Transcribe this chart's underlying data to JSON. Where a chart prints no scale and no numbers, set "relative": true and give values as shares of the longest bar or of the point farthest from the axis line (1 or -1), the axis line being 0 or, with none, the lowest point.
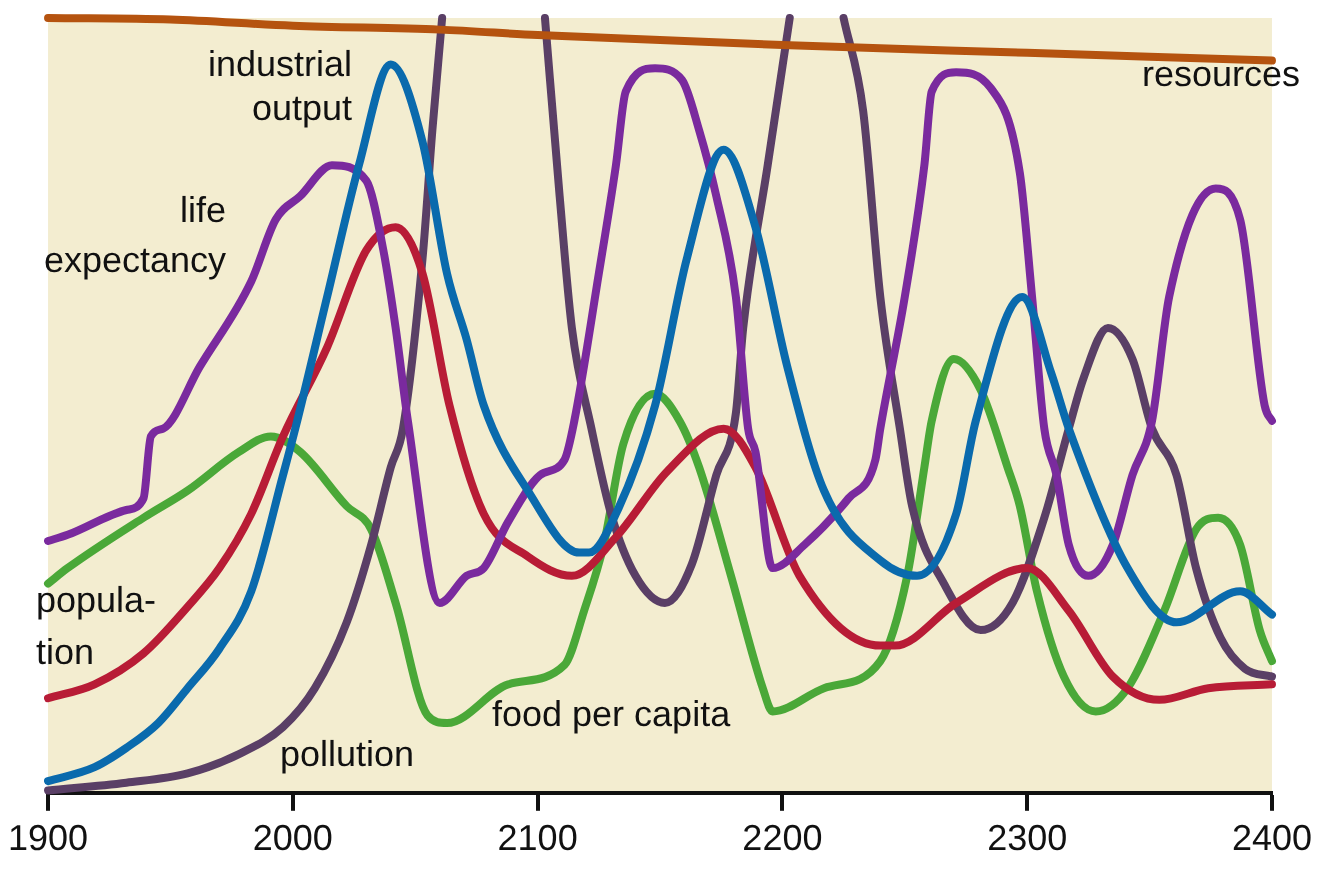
{
  "chart_data": {
    "type": "line",
    "relative": true,
    "xlim": [
      1900,
      2400
    ],
    "xticks": [
      1900,
      2000,
      2100,
      2200,
      2300,
      2400
    ],
    "grid": false,
    "legend": false,
    "marker": "none",
    "line_style": "solid",
    "series": [
      {
        "name": "resources",
        "color": "#b5530f",
        "x": [
          1900,
          1950,
          2000,
          2060,
          2100,
          2200,
          2300,
          2400
        ],
        "values": [
          1.0,
          0.998,
          0.99,
          0.985,
          0.978,
          0.965,
          0.955,
          0.945
        ]
      },
      {
        "name": "industrial output",
        "color": "#0a6aad",
        "x": [
          1900,
          1919,
          1932,
          1945,
          1957,
          1970,
          1983,
          1996,
          2001,
          2014,
          2027,
          2040,
          2053,
          2063,
          2071,
          2078,
          2096,
          2117,
          2121,
          2132,
          2148,
          2161,
          2176,
          2189,
          2202,
          2217,
          2240,
          2255,
          2271,
          2279,
          2298,
          2310,
          2317,
          2341,
          2361,
          2387,
          2400
        ],
        "values": [
          0.015,
          0.033,
          0.058,
          0.09,
          0.135,
          0.186,
          0.26,
          0.41,
          0.47,
          0.64,
          0.81,
          0.94,
          0.84,
          0.67,
          0.585,
          0.5,
          0.39,
          0.31,
          0.31,
          0.36,
          0.5,
          0.69,
          0.83,
          0.73,
          0.55,
          0.39,
          0.3,
          0.28,
          0.36,
          0.48,
          0.64,
          0.54,
          0.47,
          0.29,
          0.22,
          0.26,
          0.23
        ]
      },
      {
        "name": "life expectancy",
        "color": "#7a2a9e",
        "x": [
          1900,
          1908,
          1932,
          1939,
          1942,
          1947,
          1962,
          1983,
          1993,
          2003,
          2016,
          2030,
          2037,
          2042,
          2047,
          2060,
          2071,
          2078,
          2088,
          2101,
          2111,
          2115,
          2125,
          2132,
          2136,
          2148,
          2159,
          2166,
          2173,
          2181,
          2186,
          2189,
          2196,
          2209,
          2227,
          2238,
          2240,
          2250,
          2258,
          2261,
          2271,
          2285,
          2297,
          2302,
          2307,
          2312,
          2317,
          2325,
          2335,
          2343,
          2351,
          2358,
          2377,
          2387,
          2397,
          2400
        ],
        "values": [
          0.325,
          0.333,
          0.365,
          0.38,
          0.46,
          0.47,
          0.55,
          0.66,
          0.74,
          0.77,
          0.81,
          0.79,
          0.7,
          0.6,
          0.48,
          0.245,
          0.28,
          0.29,
          0.35,
          0.41,
          0.43,
          0.48,
          0.67,
          0.81,
          0.905,
          0.935,
          0.92,
          0.855,
          0.77,
          0.64,
          0.47,
          0.44,
          0.29,
          0.32,
          0.38,
          0.43,
          0.47,
          0.64,
          0.81,
          0.905,
          0.93,
          0.91,
          0.8,
          0.64,
          0.47,
          0.41,
          0.32,
          0.28,
          0.32,
          0.41,
          0.48,
          0.64,
          0.78,
          0.74,
          0.5,
          0.48
        ]
      },
      {
        "name": "popula- tion",
        "color": "#b81c36",
        "x": [
          1900,
          1919,
          1939,
          1957,
          1970,
          1983,
          1996,
          2014,
          2030,
          2042,
          2053,
          2064,
          2078,
          2096,
          2114,
          2132,
          2153,
          2176,
          2189,
          2207,
          2240,
          2246,
          2271,
          2300,
          2317,
          2335,
          2354,
          2374,
          2400
        ],
        "values": [
          0.122,
          0.14,
          0.18,
          0.24,
          0.29,
          0.36,
          0.46,
          0.575,
          0.7,
          0.73,
          0.67,
          0.5,
          0.36,
          0.305,
          0.28,
          0.33,
          0.415,
          0.47,
          0.42,
          0.28,
          0.19,
          0.19,
          0.245,
          0.29,
          0.235,
          0.15,
          0.12,
          0.135,
          0.14
        ]
      },
      {
        "name": "pollution",
        "color": "#5a3f66",
        "x": [
          1900,
          1932,
          1957,
          1978,
          1996,
          2009,
          2022,
          2032,
          2040,
          2045,
          2053,
          2057,
          2061,
          2080,
          2103,
          2109,
          2114,
          2122,
          2130,
          2140,
          2152,
          2163,
          2173,
          2181,
          2184,
          2194,
          2203,
          2214,
          2225,
          2233,
          2240,
          2248,
          2253,
          2266,
          2281,
          2294,
          2307,
          2317,
          2323,
          2333,
          2343,
          2351,
          2361,
          2369,
          2379,
          2389,
          2400
        ],
        "values": [
          0.003,
          0.013,
          0.025,
          0.05,
          0.085,
          0.135,
          0.22,
          0.32,
          0.42,
          0.47,
          0.69,
          0.855,
          1.0,
          null,
          1.0,
          0.77,
          0.6,
          0.47,
          0.36,
          0.28,
          0.245,
          0.295,
          0.41,
          0.49,
          0.6,
          0.81,
          1.0,
          null,
          1.0,
          0.88,
          0.64,
          0.47,
          0.37,
          0.27,
          0.21,
          0.245,
          0.355,
          0.47,
          0.535,
          0.6,
          0.56,
          0.47,
          0.41,
          0.29,
          0.2,
          0.16,
          0.15
        ]
      },
      {
        "name": "food per capita",
        "color": "#4aa838",
        "x": [
          1900,
          1908,
          1939,
          1957,
          1978,
          1991,
          2003,
          2022,
          2032,
          2042,
          2055,
          2063,
          2088,
          2111,
          2119,
          2127,
          2135,
          2148,
          2158,
          2166,
          2179,
          2192,
          2196,
          2217,
          2240,
          2251,
          2258,
          2261,
          2270,
          2281,
          2292,
          2297,
          2304,
          2315,
          2328,
          2341,
          2356,
          2369,
          2378,
          2387,
          2395,
          2400
        ],
        "values": [
          0.27,
          0.29,
          0.355,
          0.39,
          0.44,
          0.46,
          0.44,
          0.37,
          0.34,
          0.245,
          0.1,
          0.09,
          0.14,
          0.165,
          0.235,
          0.32,
          0.45,
          0.515,
          0.48,
          0.42,
          0.28,
          0.135,
          0.105,
          0.135,
          0.17,
          0.28,
          0.42,
          0.48,
          0.56,
          0.52,
          0.42,
          0.37,
          0.26,
          0.15,
          0.105,
          0.135,
          0.235,
          0.34,
          0.355,
          0.32,
          0.21,
          0.17
        ]
      }
    ]
  }
}
